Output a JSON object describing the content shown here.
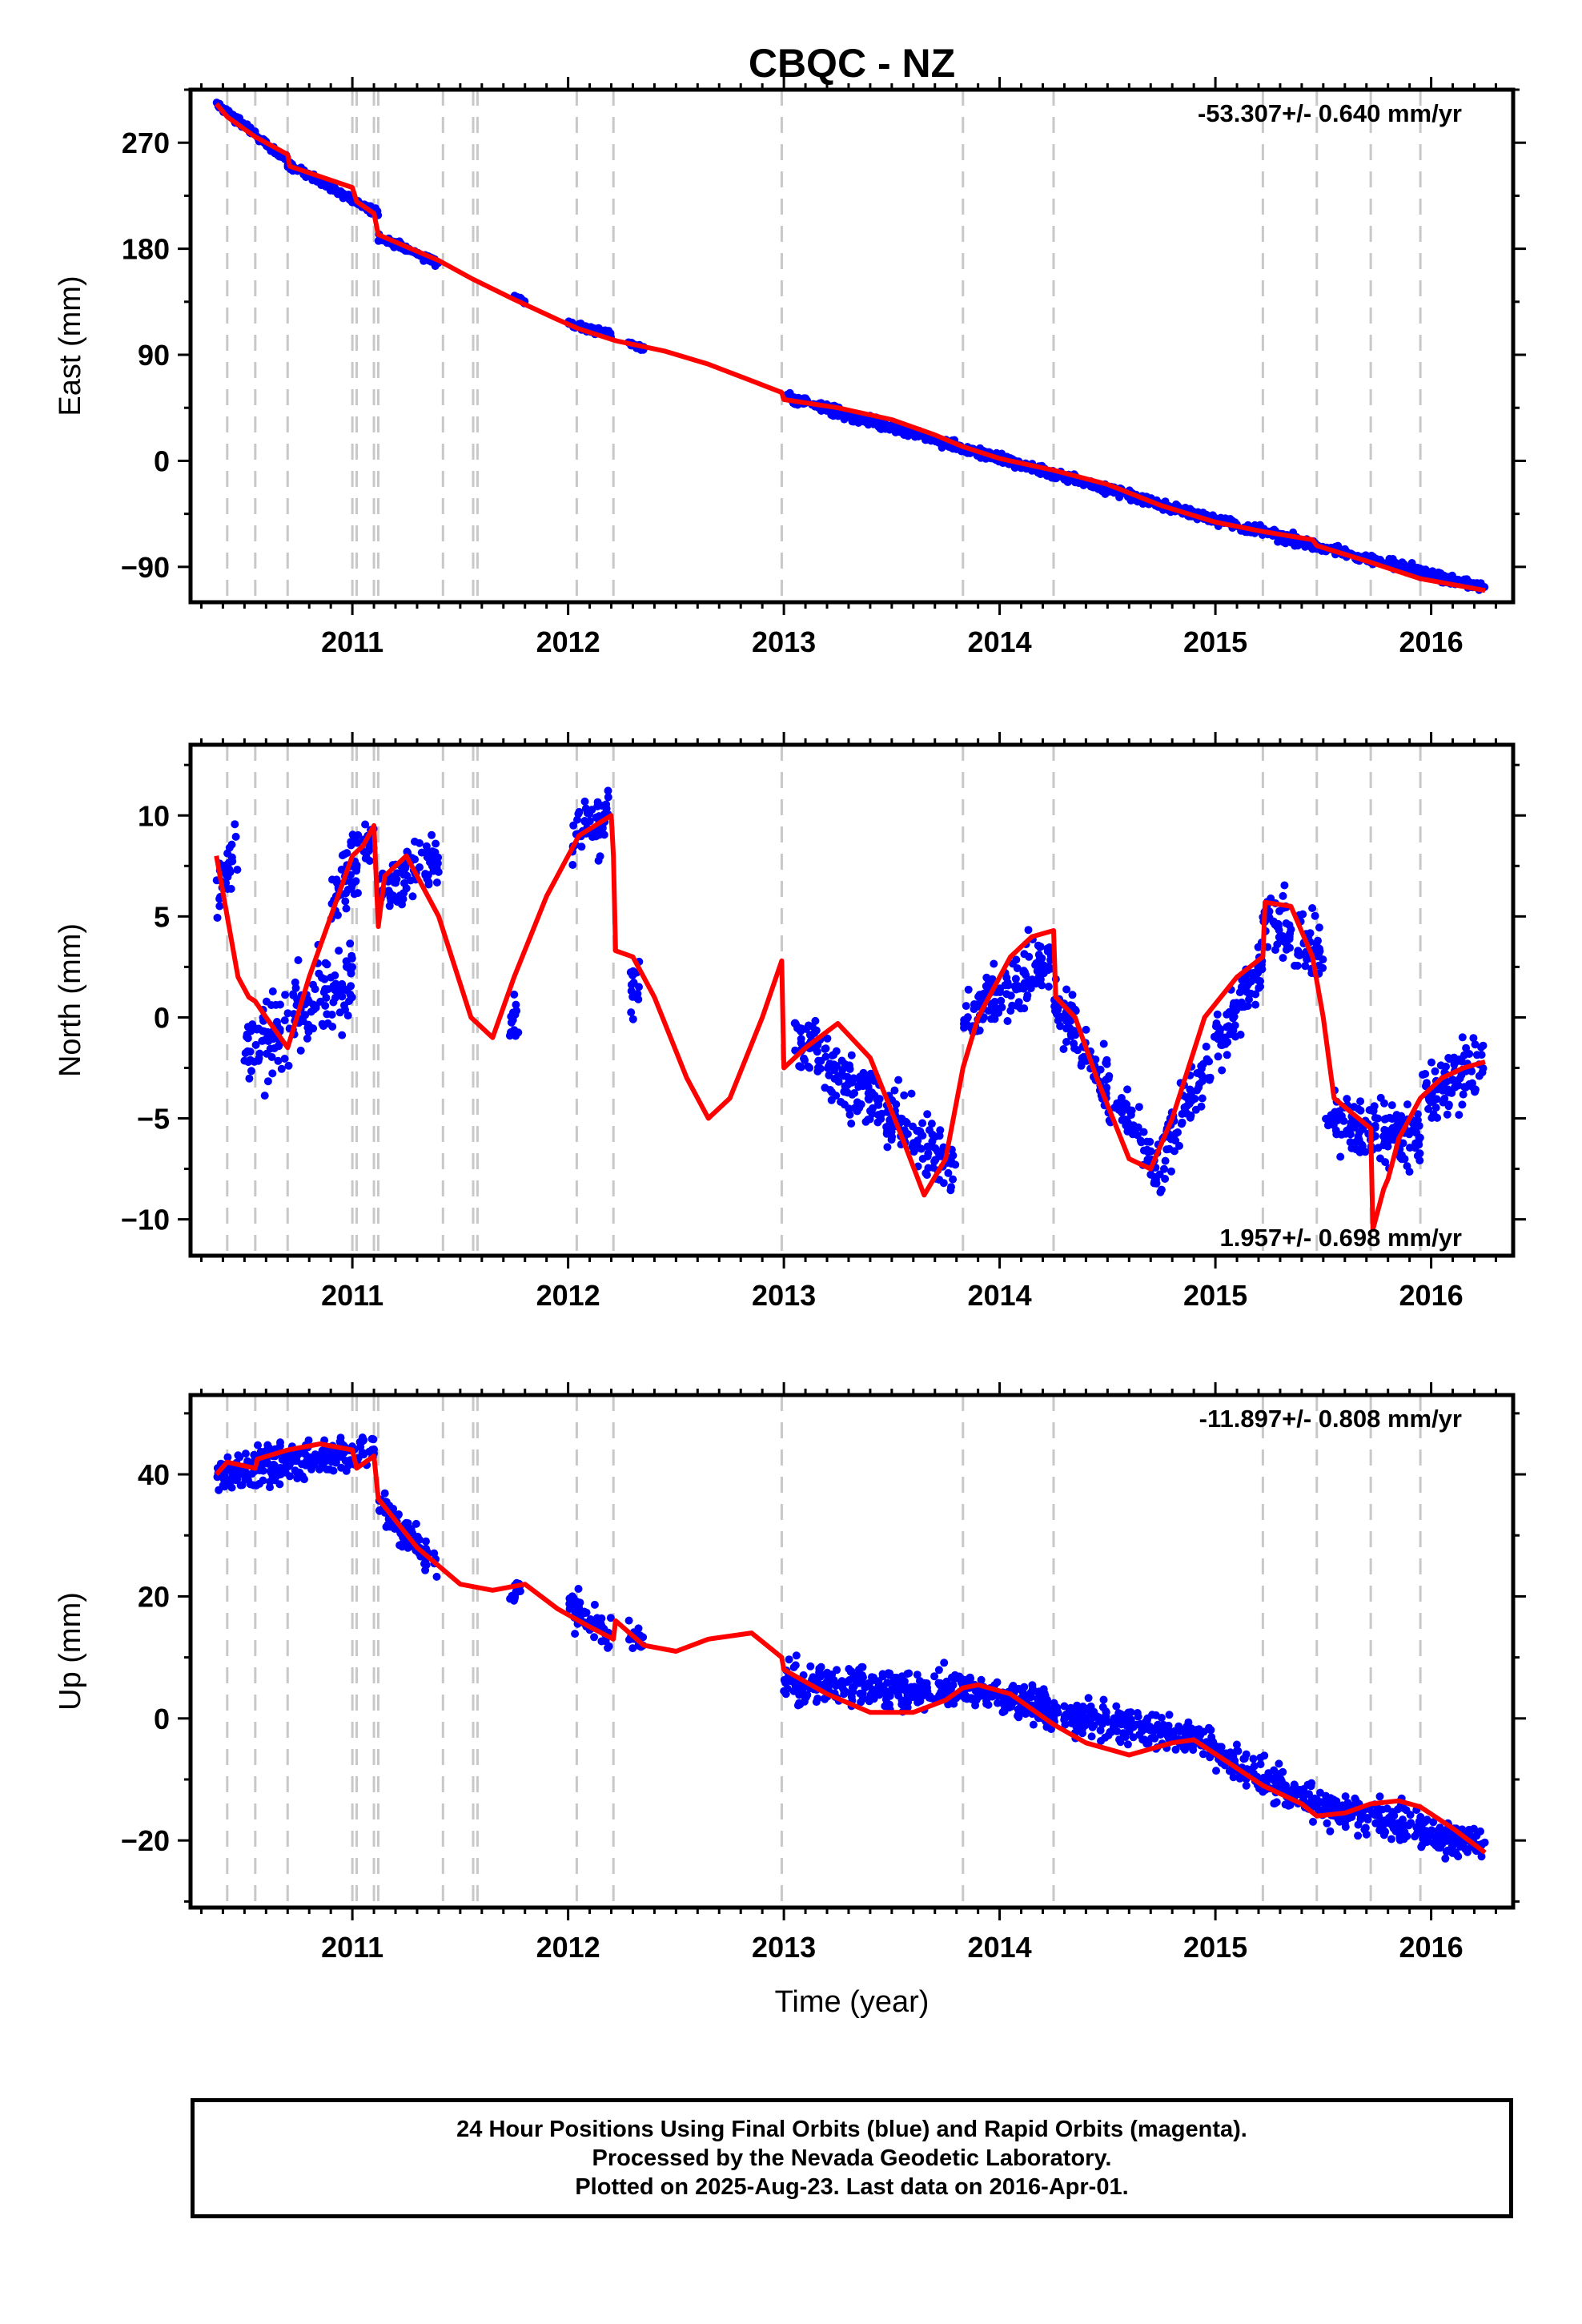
{
  "footer": {
    "line1": "24 Hour Positions Using Final Orbits (blue) and Rapid Orbits (magenta).",
    "line2": "Processed by the Nevada Geodetic Laboratory.",
    "line3": "Plotted on 2025-Aug-23. Last data on 2016-Apr-01."
  },
  "colors": {
    "points": "#0000ff",
    "model": "#ff0000",
    "steps": "#c8c8c8",
    "frame": "#000000"
  },
  "chart_data": [
    {
      "type": "scatter",
      "title": "CBQC - NZ",
      "xlabel": "",
      "ylabel": "East (mm)",
      "rate_label": "-53.307+/- 0.640 mm/yr",
      "rate_position": "top-right",
      "xlim": [
        2010.25,
        2016.38
      ],
      "ylim": [
        -120,
        315
      ],
      "xticks": [
        2011,
        2012,
        2013,
        2014,
        2015,
        2016
      ],
      "yticks": [
        -90,
        0,
        90,
        180,
        270
      ],
      "grid": false,
      "model_x": [
        2010.37,
        2010.42,
        2010.55,
        2010.7,
        2010.71,
        2011.0,
        2011.02,
        2011.1,
        2011.12,
        2011.4,
        2011.55,
        2011.75,
        2011.95,
        2012.05,
        2012.22,
        2012.45,
        2012.65,
        2012.85,
        2012.99,
        2013.0,
        2013.25,
        2013.5,
        2013.7,
        2013.83,
        2014.0,
        2014.25,
        2014.5,
        2014.75,
        2015.0,
        2015.22,
        2015.45,
        2015.47,
        2015.7,
        2015.95,
        2016.25
      ],
      "model_y": [
        303,
        292,
        275,
        260,
        250,
        232,
        220,
        210,
        192,
        170,
        155,
        137,
        120,
        112,
        102,
        93,
        82,
        68,
        58,
        52,
        45,
        35,
        22,
        12,
        2,
        -8,
        -20,
        -38,
        -52,
        -60,
        -67,
        -72,
        -85,
        -100,
        -110
      ],
      "data": [
        {
          "x": [
            2010.37,
            2010.7
          ],
          "y": [
            303,
            255
          ],
          "noise": 3
        },
        {
          "x": [
            2010.7,
            2011.12
          ],
          "y": [
            252,
            210
          ],
          "noise": 3
        },
        {
          "x": [
            2011.12,
            2011.4
          ],
          "y": [
            190,
            168
          ],
          "noise": 3
        },
        {
          "x": [
            2011.75,
            2011.8
          ],
          "y": [
            140,
            135
          ],
          "noise": 2
        },
        {
          "x": [
            2012.0,
            2012.2
          ],
          "y": [
            117,
            107
          ],
          "noise": 3
        },
        {
          "x": [
            2012.28,
            2012.35
          ],
          "y": [
            100,
            95
          ],
          "noise": 2
        },
        {
          "x": [
            2013.0,
            2014.0
          ],
          "y": [
            54,
            2
          ],
          "noise": 4
        },
        {
          "x": [
            2014.0,
            2015.0
          ],
          "y": [
            2,
            -50
          ],
          "noise": 4
        },
        {
          "x": [
            2015.0,
            2016.25
          ],
          "y": [
            -50,
            -108
          ],
          "noise": 4
        }
      ],
      "steps": [
        2010.42,
        2010.55,
        2010.7,
        2011.0,
        2011.02,
        2011.1,
        2011.12,
        2011.42,
        2011.56,
        2011.58,
        2012.04,
        2012.21,
        2012.99,
        2013.83,
        2014.25,
        2015.22,
        2015.47,
        2015.72,
        2015.95
      ]
    },
    {
      "type": "scatter",
      "title": "",
      "xlabel": "",
      "ylabel": "North (mm)",
      "rate_label": "1.957+/- 0.698 mm/yr",
      "rate_position": "bottom-right",
      "xlim": [
        2010.25,
        2016.38
      ],
      "ylim": [
        -11.8,
        13.5
      ],
      "xticks": [
        2011,
        2012,
        2013,
        2014,
        2015,
        2016
      ],
      "yticks": [
        -10,
        -5,
        0,
        5,
        10
      ],
      "grid": false,
      "model_x": [
        2010.37,
        2010.42,
        2010.47,
        2010.52,
        2010.55,
        2010.6,
        2010.7,
        2010.8,
        2010.9,
        2011.0,
        2011.05,
        2011.1,
        2011.12,
        2011.15,
        2011.25,
        2011.4,
        2011.55,
        2011.65,
        2011.75,
        2011.9,
        2012.05,
        2012.2,
        2012.21,
        2012.22,
        2012.3,
        2012.4,
        2012.55,
        2012.65,
        2012.75,
        2012.9,
        2012.99,
        2013.0,
        2013.1,
        2013.25,
        2013.4,
        2013.55,
        2013.65,
        2013.75,
        2013.83,
        2013.9,
        2014.05,
        2014.15,
        2014.25,
        2014.26,
        2014.35,
        2014.45,
        2014.6,
        2014.7,
        2014.8,
        2014.95,
        2015.1,
        2015.22,
        2015.23,
        2015.35,
        2015.45,
        2015.5,
        2015.55,
        2015.72,
        2015.73,
        2015.78,
        2015.8,
        2015.85,
        2015.95,
        2016.05,
        2016.15,
        2016.25
      ],
      "model_y": [
        8,
        5,
        2,
        1,
        0.8,
        0,
        -1.5,
        2,
        5,
        8,
        8.5,
        9.5,
        4.5,
        7,
        8,
        5,
        0,
        -1,
        2,
        6,
        9,
        10,
        8,
        3.3,
        3,
        1,
        -3,
        -5,
        -4,
        0,
        2.8,
        -2.5,
        -1.5,
        -0.3,
        -2,
        -6,
        -8.8,
        -7,
        -2.5,
        0,
        3,
        4,
        4.3,
        1,
        0,
        -3,
        -7,
        -7.5,
        -5,
        0,
        2,
        3,
        5.7,
        5.5,
        3,
        0,
        -4,
        -5.5,
        -10.5,
        -8.5,
        -8,
        -6,
        -4,
        -3,
        -2.5,
        -2.2
      ],
      "data": [
        {
          "x": [
            2010.37,
            2010.47
          ],
          "y": [
            6,
            8
          ],
          "noise": 1.5
        },
        {
          "x": [
            2010.5,
            2011.0
          ],
          "y": [
            -2,
            2
          ],
          "noise": 2
        },
        {
          "x": [
            2010.9,
            2011.1
          ],
          "y": [
            6,
            9
          ],
          "noise": 1.5
        },
        {
          "x": [
            2011.12,
            2011.4
          ],
          "y": [
            6,
            8
          ],
          "noise": 1.5
        },
        {
          "x": [
            2011.73,
            2011.77
          ],
          "y": [
            0,
            0
          ],
          "noise": 1
        },
        {
          "x": [
            2012.02,
            2012.2
          ],
          "y": [
            9,
            10
          ],
          "noise": 1.5
        },
        {
          "x": [
            2012.28,
            2012.33
          ],
          "y": [
            2,
            1
          ],
          "noise": 1.5
        },
        {
          "x": [
            2013.05,
            2013.8
          ],
          "y": [
            -1,
            -7.5
          ],
          "noise": 1.5
        },
        {
          "x": [
            2013.83,
            2014.25
          ],
          "y": [
            0,
            3
          ],
          "noise": 1.5
        },
        {
          "x": [
            2014.25,
            2014.75
          ],
          "y": [
            1,
            -8
          ],
          "noise": 1.5
        },
        {
          "x": [
            2014.75,
            2015.22
          ],
          "y": [
            -7,
            3
          ],
          "noise": 1.5
        },
        {
          "x": [
            2015.22,
            2015.5
          ],
          "y": [
            5,
            3
          ],
          "noise": 1.5
        },
        {
          "x": [
            2015.5,
            2015.95
          ],
          "y": [
            -5,
            -6
          ],
          "noise": 1.5
        },
        {
          "x": [
            2015.95,
            2016.25
          ],
          "y": [
            -4,
            -2
          ],
          "noise": 1.5
        }
      ],
      "steps": [
        2010.42,
        2010.55,
        2010.7,
        2011.0,
        2011.02,
        2011.1,
        2011.12,
        2011.42,
        2011.56,
        2011.58,
        2012.04,
        2012.21,
        2012.99,
        2013.83,
        2014.25,
        2015.22,
        2015.47,
        2015.72,
        2015.95
      ]
    },
    {
      "type": "scatter",
      "title": "",
      "xlabel": "Time (year)",
      "ylabel": "Up (mm)",
      "rate_label": "-11.897+/- 0.808 mm/yr",
      "rate_position": "top-right",
      "xlim": [
        2010.25,
        2016.38
      ],
      "ylim": [
        -31,
        53
      ],
      "xticks": [
        2011,
        2012,
        2013,
        2014,
        2015,
        2016
      ],
      "yticks": [
        -20,
        0,
        20,
        40
      ],
      "grid": false,
      "model_x": [
        2010.37,
        2010.42,
        2010.55,
        2010.56,
        2010.7,
        2010.85,
        2011.0,
        2011.02,
        2011.1,
        2011.12,
        2011.3,
        2011.5,
        2011.65,
        2011.8,
        2011.95,
        2012.1,
        2012.21,
        2012.22,
        2012.35,
        2012.5,
        2012.65,
        2012.85,
        2012.99,
        2013.0,
        2013.2,
        2013.4,
        2013.6,
        2013.75,
        2013.83,
        2013.9,
        2014.05,
        2014.25,
        2014.4,
        2014.6,
        2014.8,
        2014.9,
        2015.05,
        2015.22,
        2015.4,
        2015.47,
        2015.6,
        2015.72,
        2015.85,
        2015.95,
        2016.1,
        2016.25
      ],
      "model_y": [
        40,
        42,
        41,
        42.5,
        44,
        45,
        44,
        41,
        43,
        36,
        28,
        22,
        21,
        22,
        18,
        15,
        13,
        16,
        12,
        11,
        13,
        14,
        10,
        8,
        4,
        1,
        1,
        3,
        5,
        5.5,
        4,
        -1,
        -4,
        -6,
        -4,
        -3.5,
        -7,
        -11,
        -14,
        -16,
        -15.5,
        -14,
        -13.5,
        -14.5,
        -18,
        -22
      ],
      "data": [
        {
          "x": [
            2010.37,
            2011.1
          ],
          "y": [
            40,
            44
          ],
          "noise": 3
        },
        {
          "x": [
            2011.12,
            2011.4
          ],
          "y": [
            35,
            25
          ],
          "noise": 3
        },
        {
          "x": [
            2011.73,
            2011.78
          ],
          "y": [
            21,
            21
          ],
          "noise": 2
        },
        {
          "x": [
            2012.0,
            2012.2
          ],
          "y": [
            19,
            13
          ],
          "noise": 3
        },
        {
          "x": [
            2012.28,
            2012.35
          ],
          "y": [
            14,
            12
          ],
          "noise": 2
        },
        {
          "x": [
            2013.0,
            2014.0
          ],
          "y": [
            6,
            4
          ],
          "noise": 3
        },
        {
          "x": [
            2014.0,
            2015.0
          ],
          "y": [
            3,
            -4
          ],
          "noise": 3
        },
        {
          "x": [
            2015.0,
            2015.6
          ],
          "y": [
            -6,
            -16
          ],
          "noise": 3
        },
        {
          "x": [
            2015.6,
            2016.25
          ],
          "y": [
            -15,
            -21
          ],
          "noise": 3
        }
      ],
      "steps": [
        2010.42,
        2010.55,
        2010.7,
        2011.0,
        2011.02,
        2011.1,
        2011.12,
        2011.42,
        2011.56,
        2011.58,
        2012.04,
        2012.21,
        2012.99,
        2013.83,
        2014.25,
        2015.22,
        2015.47,
        2015.72,
        2015.95
      ]
    }
  ]
}
